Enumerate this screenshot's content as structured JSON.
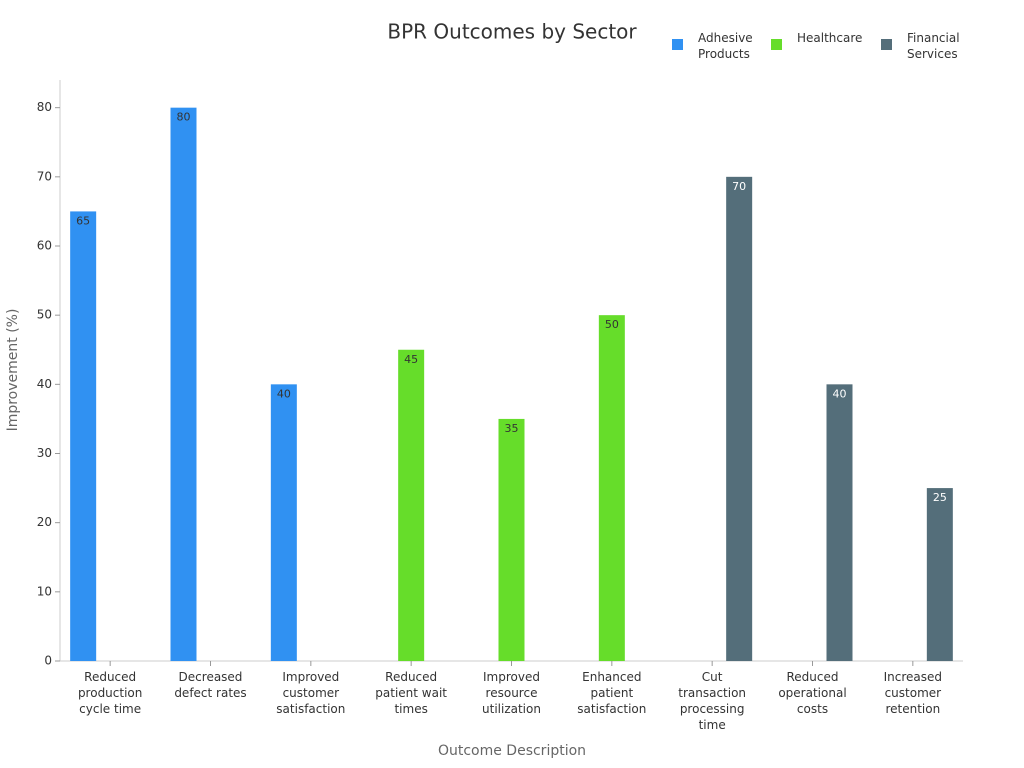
{
  "chart_data": {
    "type": "bar",
    "title": "BPR Outcomes by Sector",
    "x_label": "Outcome Description",
    "y_label": "Improvement (%)",
    "categories": [
      "Reduced production cycle time",
      "Decreased defect rates",
      "Improved customer satisfaction",
      "Reduced patient wait times",
      "Improved resource utilization",
      "Enhanced patient satisfaction",
      "Cut transaction processing time",
      "Reduced operational costs",
      "Increased customer retention"
    ],
    "series": [
      {
        "name": "Adhesive Products",
        "color": "#3091f2",
        "values": [
          65,
          80,
          40,
          null,
          null,
          null,
          null,
          null,
          null
        ]
      },
      {
        "name": "Healthcare",
        "color": "#66dd2a",
        "values": [
          null,
          null,
          null,
          45,
          35,
          50,
          null,
          null,
          null
        ]
      },
      {
        "name": "Financial Services",
        "color": "#546e7a",
        "values": [
          null,
          null,
          null,
          null,
          null,
          null,
          70,
          40,
          25
        ]
      }
    ],
    "ylim": [
      0,
      84
    ],
    "yticks": [
      0,
      10,
      20,
      30,
      40,
      50,
      60,
      70,
      80
    ],
    "grid": false,
    "legend": "top-right"
  }
}
